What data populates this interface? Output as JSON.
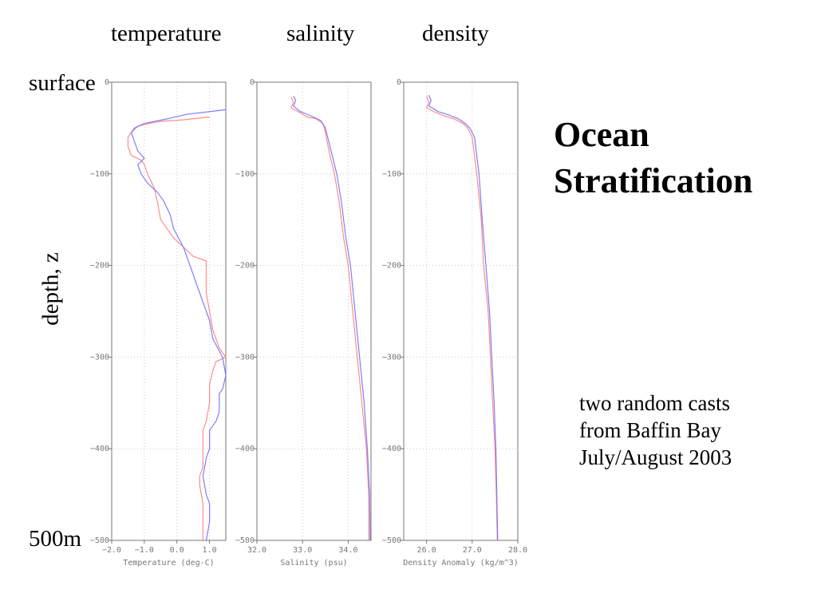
{
  "headings": {
    "temperature": "temperature",
    "salinity": "salinity",
    "density": "density"
  },
  "left_labels": {
    "surface": "surface",
    "depth": "depth, z",
    "bottom": "500m"
  },
  "title": {
    "line1": "Ocean",
    "line2": "Stratification"
  },
  "note": {
    "line1": "two random casts",
    "line2": "from Baffin Bay",
    "line3": "July/August 2003"
  },
  "colors": {
    "cast1": "#ff8080",
    "cast2": "#7070ff",
    "axis": "#777777",
    "grid": "#cccccc"
  },
  "chart_data": [
    {
      "type": "line",
      "xlabel": "Temperature (deg-C)",
      "xlim": [
        -2.0,
        1.5
      ],
      "xticks": [
        -2.0,
        -1.0,
        0.0,
        1.0
      ],
      "xtick_labels": [
        "−2.0",
        "−1.0",
        "0.0",
        "1.0"
      ],
      "ylim": [
        -500,
        0
      ],
      "yticks": [
        0,
        -100,
        -200,
        -300,
        -400,
        -500
      ],
      "ytick_labels": [
        "0",
        "−100",
        "−200",
        "−300",
        "−400",
        "−500"
      ],
      "grid": true,
      "series": [
        {
          "color": "#ff8080",
          "points": [
            [
              1.0,
              -38
            ],
            [
              0.2,
              -41
            ],
            [
              -0.6,
              -43
            ],
            [
              -1.2,
              -48
            ],
            [
              -1.4,
              -55
            ],
            [
              -1.5,
              -60
            ],
            [
              -1.5,
              -70
            ],
            [
              -1.4,
              -80
            ],
            [
              -1.1,
              -85
            ],
            [
              -1.0,
              -90
            ],
            [
              -0.9,
              -100
            ],
            [
              -0.7,
              -115
            ],
            [
              -0.6,
              -130
            ],
            [
              -0.5,
              -150
            ],
            [
              -0.3,
              -160
            ],
            [
              -0.1,
              -170
            ],
            [
              0.2,
              -180
            ],
            [
              0.5,
              -190
            ],
            [
              0.9,
              -195
            ],
            [
              0.9,
              -210
            ],
            [
              0.9,
              -230
            ],
            [
              1.0,
              -250
            ],
            [
              1.1,
              -270
            ],
            [
              1.3,
              -290
            ],
            [
              1.5,
              -300
            ],
            [
              1.2,
              -305
            ],
            [
              1.1,
              -315
            ],
            [
              1.0,
              -330
            ],
            [
              1.0,
              -350
            ],
            [
              0.9,
              -370
            ],
            [
              0.8,
              -380
            ],
            [
              0.8,
              -400
            ],
            [
              0.8,
              -420
            ],
            [
              0.7,
              -430
            ],
            [
              0.7,
              -440
            ],
            [
              0.8,
              -460
            ],
            [
              0.8,
              -480
            ],
            [
              0.8,
              -500
            ]
          ]
        },
        {
          "color": "#7070ff",
          "points": [
            [
              1.5,
              -30
            ],
            [
              0.8,
              -33
            ],
            [
              0.3,
              -35
            ],
            [
              -0.3,
              -40
            ],
            [
              -1.0,
              -45
            ],
            [
              -1.3,
              -50
            ],
            [
              -1.4,
              -55
            ],
            [
              -1.3,
              -65
            ],
            [
              -1.2,
              -75
            ],
            [
              -1.0,
              -83
            ],
            [
              -1.2,
              -90
            ],
            [
              -1.1,
              -100
            ],
            [
              -0.9,
              -110
            ],
            [
              -0.6,
              -120
            ],
            [
              -0.4,
              -130
            ],
            [
              -0.2,
              -145
            ],
            [
              -0.1,
              -160
            ],
            [
              0.2,
              -180
            ],
            [
              0.4,
              -200
            ],
            [
              0.6,
              -220
            ],
            [
              0.8,
              -240
            ],
            [
              1.0,
              -260
            ],
            [
              1.1,
              -280
            ],
            [
              1.4,
              -300
            ],
            [
              1.5,
              -320
            ],
            [
              1.4,
              -335
            ],
            [
              1.3,
              -340
            ],
            [
              1.3,
              -360
            ],
            [
              1.2,
              -370
            ],
            [
              1.0,
              -380
            ],
            [
              1.0,
              -400
            ],
            [
              0.9,
              -410
            ],
            [
              0.8,
              -430
            ],
            [
              0.9,
              -450
            ],
            [
              1.0,
              -460
            ],
            [
              1.0,
              -480
            ],
            [
              0.9,
              -500
            ]
          ]
        }
      ]
    },
    {
      "type": "line",
      "xlabel": "Salinity (psu)",
      "xlim": [
        32.0,
        34.5
      ],
      "xticks": [
        32.0,
        33.0,
        34.0
      ],
      "xtick_labels": [
        "32.0",
        "33.0",
        "34.0"
      ],
      "ylim": [
        -500,
        0
      ],
      "yticks": [
        0,
        -100,
        -200,
        -300,
        -400,
        -500
      ],
      "ytick_labels": [
        "0",
        "−100",
        "−200",
        "−300",
        "−400",
        "−500"
      ],
      "grid": true,
      "series": [
        {
          "color": "#ff8080",
          "points": [
            [
              32.75,
              -16
            ],
            [
              32.8,
              -22
            ],
            [
              32.75,
              -28
            ],
            [
              32.9,
              -32
            ],
            [
              33.1,
              -38
            ],
            [
              33.3,
              -40
            ],
            [
              33.45,
              -45
            ],
            [
              33.5,
              -55
            ],
            [
              33.6,
              -80
            ],
            [
              33.7,
              -100
            ],
            [
              33.8,
              -130
            ],
            [
              33.9,
              -170
            ],
            [
              34.0,
              -200
            ],
            [
              34.1,
              -250
            ],
            [
              34.2,
              -300
            ],
            [
              34.3,
              -350
            ],
            [
              34.4,
              -400
            ],
            [
              34.45,
              -450
            ],
            [
              34.45,
              -500
            ]
          ]
        },
        {
          "color": "#7070ff",
          "points": [
            [
              32.8,
              -15
            ],
            [
              32.85,
              -20
            ],
            [
              32.8,
              -26
            ],
            [
              32.95,
              -32
            ],
            [
              33.2,
              -37
            ],
            [
              33.4,
              -42
            ],
            [
              33.5,
              -50
            ],
            [
              33.55,
              -60
            ],
            [
              33.65,
              -80
            ],
            [
              33.75,
              -100
            ],
            [
              33.85,
              -130
            ],
            [
              33.95,
              -170
            ],
            [
              34.05,
              -200
            ],
            [
              34.15,
              -250
            ],
            [
              34.25,
              -300
            ],
            [
              34.35,
              -350
            ],
            [
              34.42,
              -400
            ],
            [
              34.47,
              -450
            ],
            [
              34.48,
              -500
            ]
          ]
        }
      ]
    },
    {
      "type": "line",
      "xlabel": "Density Anomaly (kg/m^3)",
      "xlim": [
        25.5,
        28.0
      ],
      "xticks": [
        26.0,
        27.0,
        28.0
      ],
      "xtick_labels": [
        "26.0",
        "27.0",
        "28.0"
      ],
      "ylim": [
        -500,
        0
      ],
      "yticks": [
        0,
        -100,
        -200,
        -300,
        -400,
        -500
      ],
      "ytick_labels": [
        "0",
        "−100",
        "−200",
        "−300",
        "−400",
        "−500"
      ],
      "grid": true,
      "series": [
        {
          "color": "#ff8080",
          "points": [
            [
              26.0,
              -15
            ],
            [
              26.05,
              -22
            ],
            [
              26.0,
              -28
            ],
            [
              26.2,
              -33
            ],
            [
              26.4,
              -37
            ],
            [
              26.6,
              -40
            ],
            [
              26.8,
              -45
            ],
            [
              26.9,
              -50
            ],
            [
              27.0,
              -60
            ],
            [
              27.05,
              -80
            ],
            [
              27.1,
              -100
            ],
            [
              27.2,
              -150
            ],
            [
              27.25,
              -200
            ],
            [
              27.35,
              -250
            ],
            [
              27.4,
              -300
            ],
            [
              27.45,
              -350
            ],
            [
              27.5,
              -400
            ],
            [
              27.53,
              -450
            ],
            [
              27.55,
              -500
            ]
          ]
        },
        {
          "color": "#7070ff",
          "points": [
            [
              26.05,
              -14
            ],
            [
              26.1,
              -20
            ],
            [
              26.05,
              -26
            ],
            [
              26.25,
              -32
            ],
            [
              26.5,
              -36
            ],
            [
              26.7,
              -40
            ],
            [
              26.85,
              -45
            ],
            [
              26.95,
              -50
            ],
            [
              27.05,
              -60
            ],
            [
              27.1,
              -80
            ],
            [
              27.15,
              -100
            ],
            [
              27.22,
              -150
            ],
            [
              27.3,
              -200
            ],
            [
              27.38,
              -250
            ],
            [
              27.43,
              -300
            ],
            [
              27.48,
              -350
            ],
            [
              27.52,
              -400
            ],
            [
              27.54,
              -450
            ],
            [
              27.56,
              -500
            ]
          ]
        }
      ]
    }
  ]
}
